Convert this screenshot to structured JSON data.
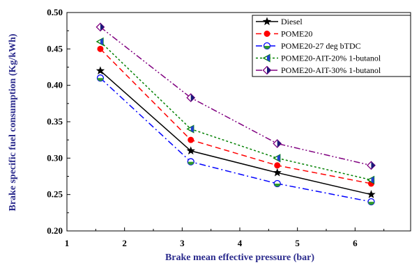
{
  "chart_data": {
    "type": "line",
    "xlabel": "Brake mean effective pressure (bar)",
    "ylabel": "Brake specific fuel consumption (Kg/kWh)",
    "xlim": [
      1,
      7
    ],
    "ylim": [
      0.2,
      0.5
    ],
    "xticks": [
      "1",
      "2",
      "3",
      "4",
      "5",
      "6",
      "7"
    ],
    "yticks": [
      "0.20",
      "0.25",
      "0.30",
      "0.35",
      "0.40",
      "0.45",
      "0.50"
    ],
    "x": [
      1.58,
      3.15,
      4.65,
      6.28
    ],
    "legend_position": "top-right",
    "series": [
      {
        "name": "Diesel",
        "values": [
          0.42,
          0.31,
          0.28,
          0.25
        ],
        "color": "#000000",
        "dash": "",
        "marker": "star"
      },
      {
        "name": "POME20",
        "values": [
          0.45,
          0.325,
          0.29,
          0.265
        ],
        "color": "#ff0000",
        "dash": "8,5",
        "marker": "circle"
      },
      {
        "name": "POME20-27 deg bTDC",
        "values": [
          0.41,
          0.295,
          0.265,
          0.24
        ],
        "color": "#0000ff",
        "dash": "9,4,2,4",
        "marker": "half-circle"
      },
      {
        "name": "POME20-AIT-20% 1-butanol",
        "values": [
          0.46,
          0.34,
          0.3,
          0.27
        ],
        "color": "#008000",
        "dash": "3,3",
        "marker": "left-triangle"
      },
      {
        "name": "POME20-AIT-30% 1-butanol",
        "values": [
          0.48,
          0.383,
          0.32,
          0.29
        ],
        "color": "#800080",
        "dash": "9,3,2,3,2,3",
        "marker": "diamond"
      }
    ]
  }
}
